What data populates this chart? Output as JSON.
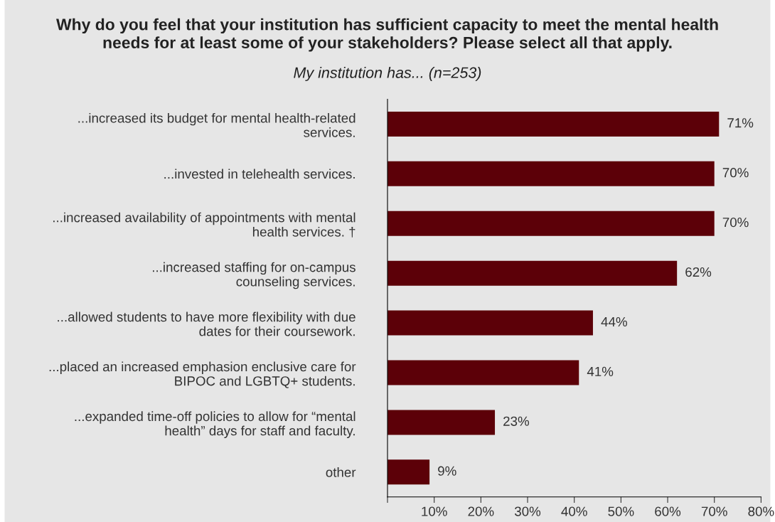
{
  "chart_data": {
    "type": "bar",
    "orientation": "horizontal",
    "title": "Why do you feel that your institution has sufficient capacity to meet the mental health\nneeds for at least some of your stakeholders? Please select all that apply.",
    "subtitle": "My institution has... (n=253)",
    "categories": [
      "...increased its budget for mental health-related\nservices.",
      "...invested in telehealth services.",
      "...increased availability of appointments with mental\nhealth services. †",
      "...increased staffing for on-campus\ncounseling services.",
      "...allowed students to have more flexibility with due\ndates for their coursework.",
      "...placed an increased emphasion enclusive care for\nBIPOC and LGBTQ+ students.",
      "...expanded time-off policies to allow for “mental\nhealth” days for staff and faculty.",
      "other"
    ],
    "values": [
      71,
      70,
      70,
      62,
      44,
      41,
      23,
      9
    ],
    "value_labels": [
      "71%",
      "70%",
      "70%",
      "62%",
      "44%",
      "41%",
      "23%",
      "9%"
    ],
    "color": "#5c0008",
    "xlim": [
      0,
      80
    ],
    "xticks": [
      {
        "value": 0,
        "label": null
      },
      {
        "value": 10,
        "label": "10%"
      },
      {
        "value": 20,
        "label": "20%"
      },
      {
        "value": 30,
        "label": "30%"
      },
      {
        "value": 40,
        "label": "40%"
      },
      {
        "value": 50,
        "label": "50%"
      },
      {
        "value": 60,
        "label": "60%"
      },
      {
        "value": 70,
        "label": "70%"
      },
      {
        "value": 80,
        "label": "80%"
      }
    ],
    "grid": false,
    "legend": false
  }
}
